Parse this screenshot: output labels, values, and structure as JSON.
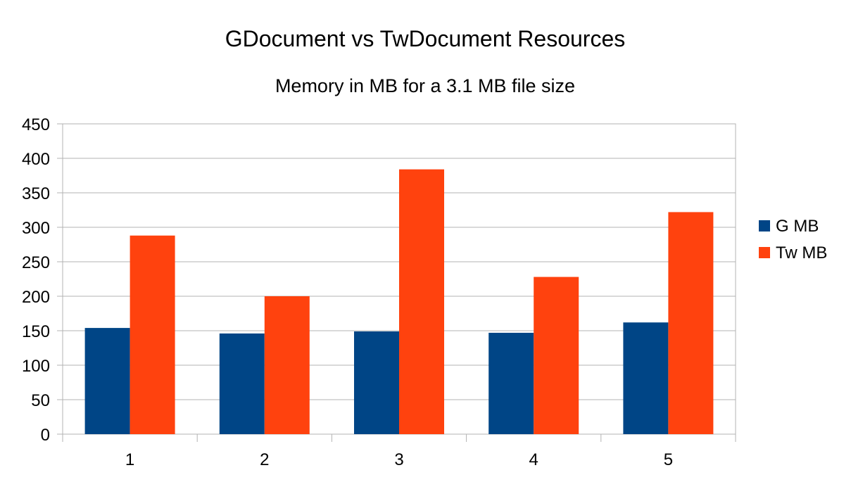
{
  "chart_data": {
    "type": "bar",
    "title": "GDocument vs TwDocument Resources",
    "subtitle": "Memory in MB for a 3.1 MB file size",
    "categories": [
      "1",
      "2",
      "3",
      "4",
      "5"
    ],
    "series": [
      {
        "name": "G MB",
        "color": "#004586",
        "values": [
          154,
          146,
          149,
          147,
          162
        ]
      },
      {
        "name": "Tw MB",
        "color": "#ff420e",
        "values": [
          288,
          200,
          384,
          228,
          322
        ]
      }
    ],
    "ylim": [
      0,
      450
    ],
    "yticks": [
      "0",
      "50",
      "100",
      "150",
      "200",
      "250",
      "300",
      "350",
      "400",
      "450"
    ],
    "grid": true,
    "legend": "right"
  }
}
